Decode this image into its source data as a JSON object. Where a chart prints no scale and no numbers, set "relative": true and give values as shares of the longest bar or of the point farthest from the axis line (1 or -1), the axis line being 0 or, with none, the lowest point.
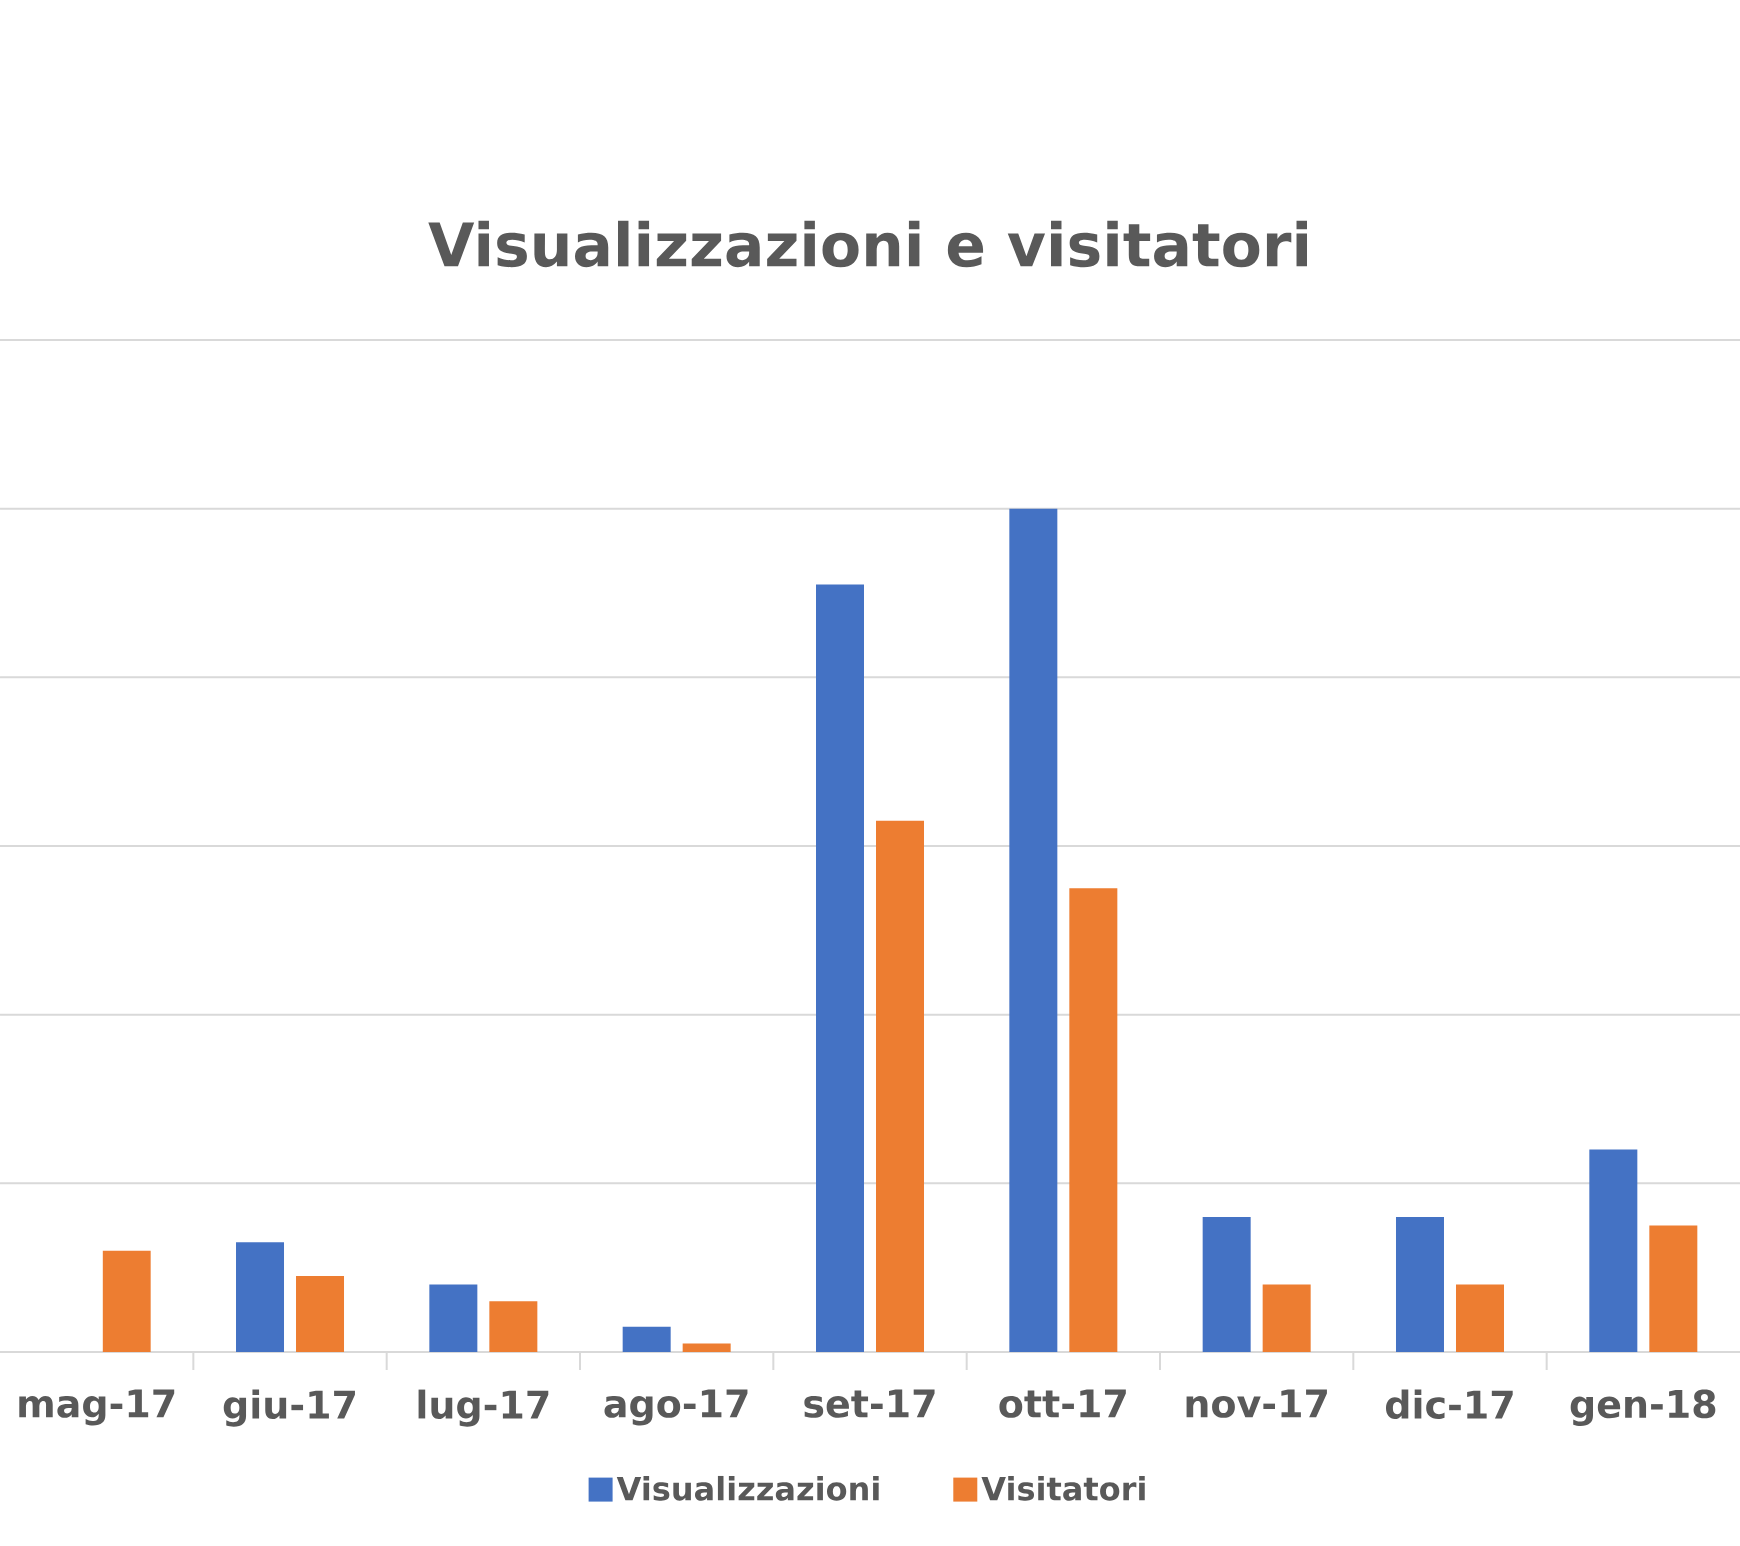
{
  "chart_data": {
    "type": "bar",
    "title": "Visualizzazioni e visitatori",
    "categories": [
      "mag-17",
      "giu-17",
      "lug-17",
      "ago-17",
      "set-17",
      "ott-17",
      "nov-17",
      "dic-17",
      "gen-18"
    ],
    "series": [
      {
        "name": "Visualizzazioni",
        "color": "#4472c4",
        "values": [
          null,
          0.13,
          0.08,
          0.03,
          0.91,
          1,
          0.16,
          0.16,
          0.24
        ]
      },
      {
        "name": "Visitatori",
        "color": "#ed7d31",
        "values": [
          0.12,
          0.09,
          0.06,
          0.01,
          0.63,
          0.55,
          0.08,
          0.08,
          0.15
        ]
      }
    ],
    "relative": true,
    "grid": "y",
    "legend": "bottom"
  }
}
